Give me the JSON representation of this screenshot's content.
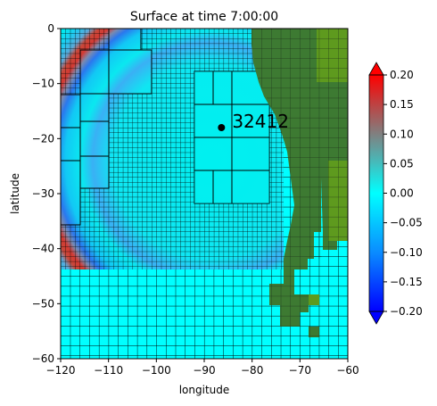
{
  "chart_data": {
    "type": "heatmap",
    "title": "Surface at time 7:00:00",
    "xlabel": "longitude",
    "ylabel": "latitude",
    "xlim": [
      -120,
      -60
    ],
    "ylim": [
      -60,
      0
    ],
    "xticks": [
      "−120",
      "−110",
      "−100",
      "−90",
      "−80",
      "−70",
      "−60"
    ],
    "yticks": [
      "−60",
      "−50",
      "−40",
      "−30",
      "−20",
      "−10",
      "0"
    ],
    "colorbar": {
      "min": -0.2,
      "max": 0.2,
      "ticks": [
        "−0.20",
        "−0.15",
        "−0.10",
        "−0.05",
        "0.00",
        "0.05",
        "0.10",
        "0.15",
        "0.20"
      ],
      "extend": "both"
    },
    "annotation": {
      "label": "32412",
      "lon": -86.4,
      "lat": -18.0
    },
    "grid": "AMR patch outlines",
    "colors": {
      "sea_level": "#00f0f0",
      "wave_crest": "#d43a32",
      "trough": "#1f6ff0",
      "land": "#3d7a32",
      "land_bright": "#5e9a1e"
    }
  }
}
